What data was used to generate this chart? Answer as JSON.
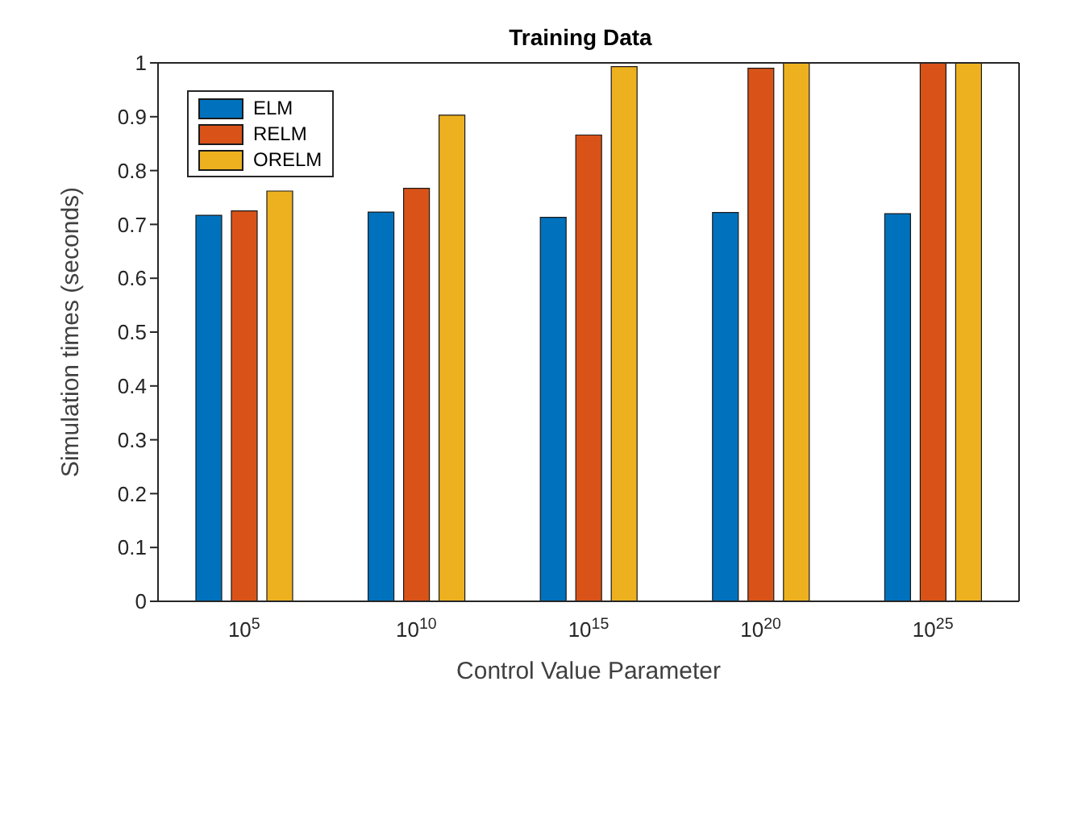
{
  "chart_data": {
    "type": "bar",
    "title": "Training Data",
    "xlabel": "Control Value Parameter",
    "ylabel": "Simulation times (seconds)",
    "categories": [
      "10$^{5}$",
      "10$^{10}$",
      "10$^{15}$",
      "10$^{20}$",
      "10$^{25}$"
    ],
    "series": [
      {
        "name": "ELM",
        "color": "#0072bd",
        "values": [
          0.717,
          0.723,
          0.713,
          0.722,
          0.72
        ]
      },
      {
        "name": "RELM",
        "color": "#d95319",
        "values": [
          0.725,
          0.767,
          0.866,
          0.99,
          1
        ]
      },
      {
        "name": "ORELM",
        "color": "#edb120",
        "values": [
          0.762,
          0.903,
          0.993,
          1,
          1
        ]
      }
    ],
    "ylim": [
      0,
      1
    ],
    "yticks": [
      0,
      0.1,
      0.2,
      0.3,
      0.4,
      0.5,
      0.6,
      0.7,
      0.8,
      0.9,
      1
    ],
    "grid": false,
    "legend": "top left"
  }
}
